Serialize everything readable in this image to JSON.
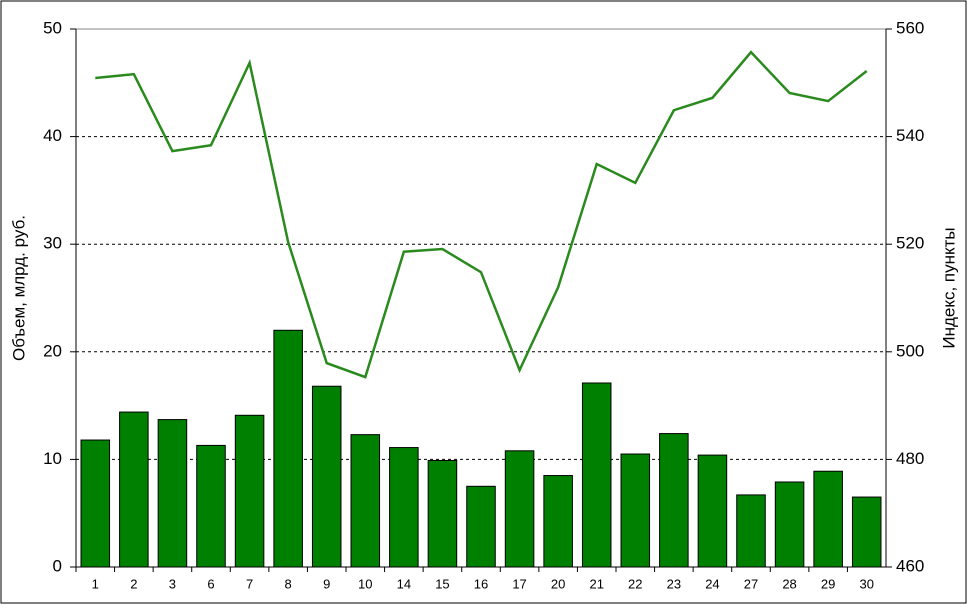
{
  "chart_data": {
    "type": "combo",
    "categories": [
      "1",
      "2",
      "3",
      "6",
      "7",
      "8",
      "9",
      "10",
      "14",
      "15",
      "16",
      "17",
      "20",
      "21",
      "22",
      "23",
      "24",
      "27",
      "28",
      "29",
      "30"
    ],
    "y_label": "Объем, млрд. руб.",
    "y2_label": "Индекс, пункты",
    "ylim": [
      0,
      50
    ],
    "yticks": [
      0,
      10,
      20,
      30,
      40,
      50
    ],
    "y2lim": [
      460,
      560
    ],
    "y2ticks": [
      460,
      480,
      500,
      520,
      540,
      560
    ],
    "grid": true,
    "series": [
      {
        "type": "bar",
        "color": "#008000",
        "values": [
          11.8,
          14.4,
          13.7,
          11.3,
          14.1,
          22.0,
          16.8,
          12.3,
          11.1,
          9.9,
          7.5,
          10.8,
          8.5,
          17.1,
          10.5,
          12.4,
          10.4,
          6.7,
          7.9,
          8.9,
          6.5
        ]
      },
      {
        "type": "line",
        "axis": "y2",
        "color": "#2a8a1e",
        "values": [
          550.9,
          551.6,
          537.3,
          538.4,
          553.7,
          520.4,
          497.9,
          495.3,
          518.6,
          519.1,
          514.8,
          496.6,
          512.0,
          534.9,
          531.4,
          544.9,
          547.2,
          555.7,
          548.1,
          546.6,
          552.2
        ]
      }
    ]
  }
}
